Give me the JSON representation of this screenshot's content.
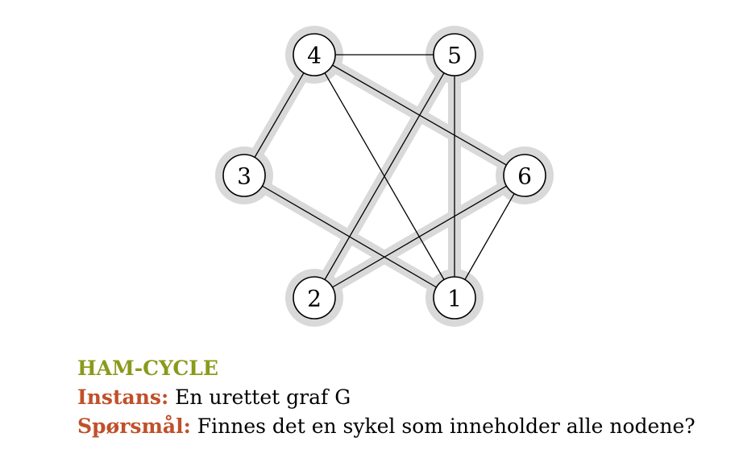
{
  "graph": {
    "nodes": [
      {
        "id": "4",
        "label": "4"
      },
      {
        "id": "5",
        "label": "5"
      },
      {
        "id": "3",
        "label": "3"
      },
      {
        "id": "6",
        "label": "6"
      },
      {
        "id": "2",
        "label": "2"
      },
      {
        "id": "1",
        "label": "1"
      }
    ],
    "edges": [
      [
        "4",
        "5"
      ],
      [
        "4",
        "3"
      ],
      [
        "4",
        "6"
      ],
      [
        "4",
        "1"
      ],
      [
        "5",
        "2"
      ],
      [
        "5",
        "1"
      ],
      [
        "3",
        "1"
      ],
      [
        "6",
        "2"
      ],
      [
        "6",
        "1"
      ]
    ],
    "highlighted_cycle": [
      "4",
      "6",
      "2",
      "5",
      "1",
      "3"
    ],
    "colors": {
      "highlight": "#d9d9d9",
      "edge": "#000000",
      "node_fill": "#ffffff"
    }
  },
  "problem": {
    "name": "HAM-CYCLE",
    "name_color": "#8a9a1b",
    "label_color": "#c0502a",
    "instance_label": "Instans:",
    "instance_text": " En urettet graf G",
    "question_label": "Spørsmål:",
    "question_text": " Finnes det en sykel som inneholder alle nodene?"
  }
}
